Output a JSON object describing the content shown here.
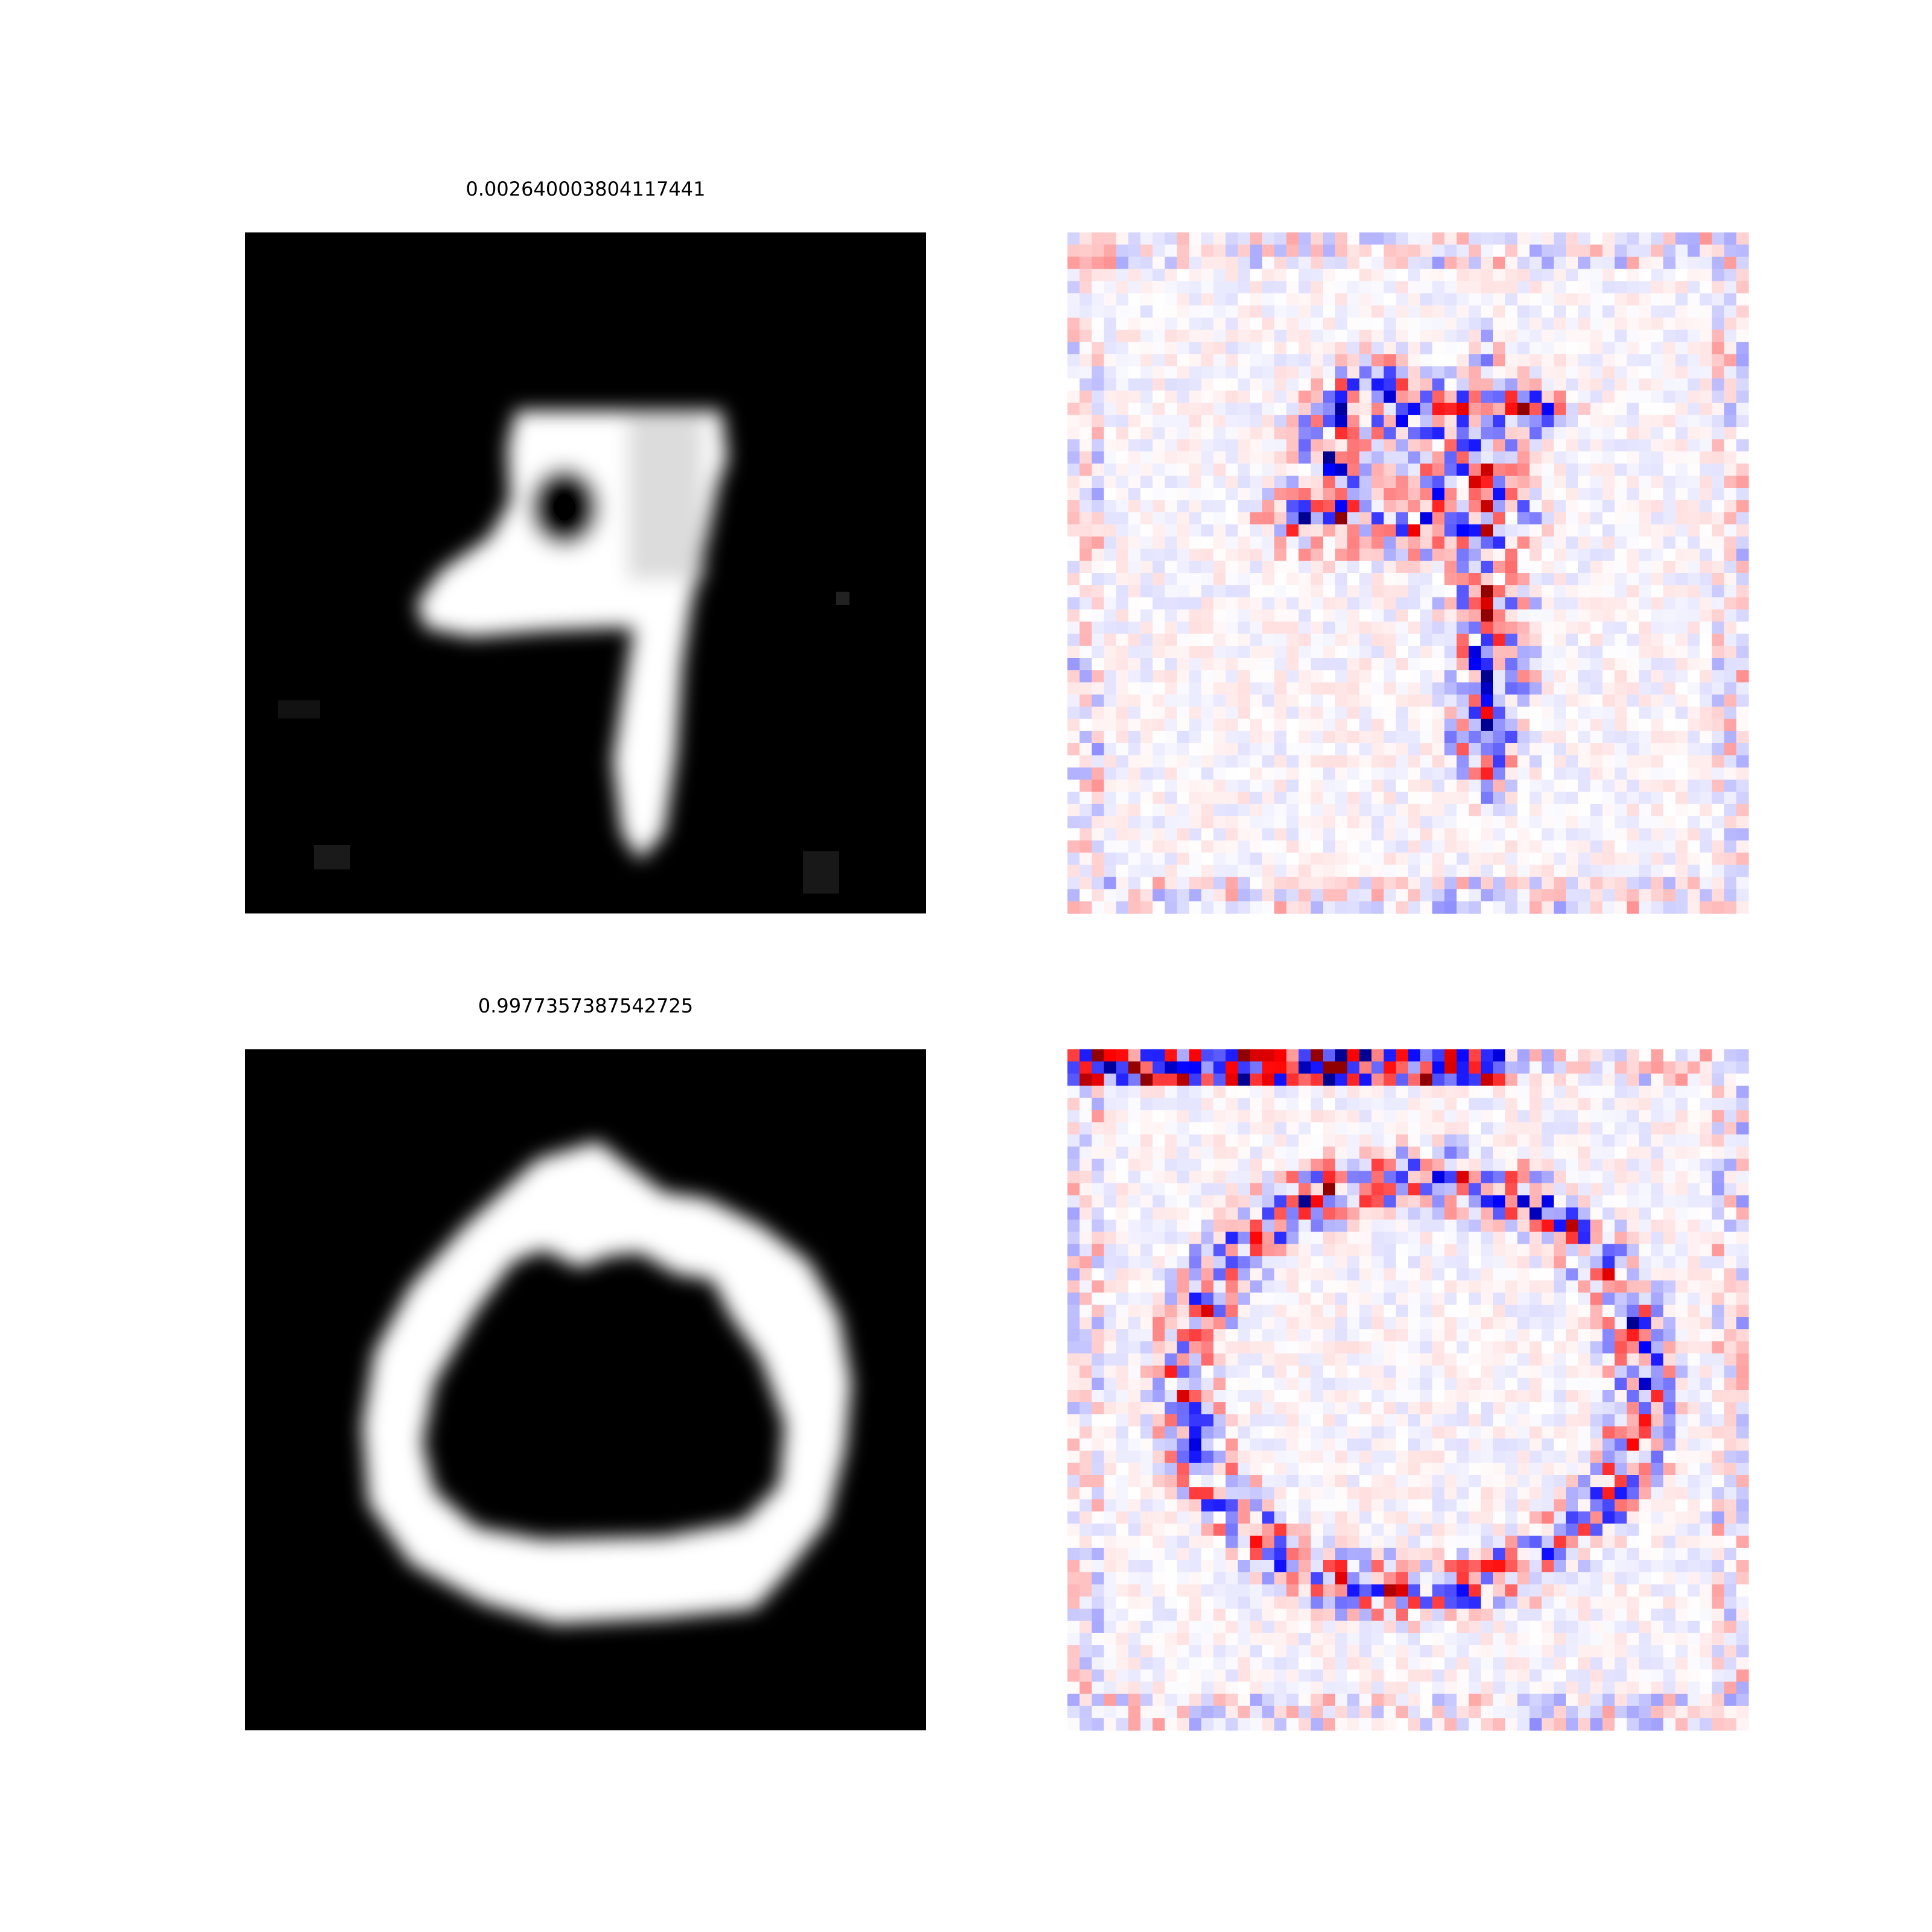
{
  "figure": {
    "background": "#ffffff",
    "layout": "2x2 grid of image panels; left column digit images, right column red-white-blue attribution heatmaps"
  },
  "chart_data": [
    {
      "type": "heatmap",
      "panel": "top-left",
      "title": "0.002640003804117441",
      "colormap": "gray",
      "depicts": "handwritten digit 9 (white on black)",
      "axes": "off"
    },
    {
      "type": "heatmap",
      "panel": "top-right",
      "title": "",
      "colormap": "bwr",
      "depicts": "attribution map for the digit 9",
      "axes": "off"
    },
    {
      "type": "heatmap",
      "panel": "bottom-left",
      "title": "0.9977357387542725",
      "colormap": "gray",
      "depicts": "handwritten digit 0 (white on black)",
      "axes": "off"
    },
    {
      "type": "heatmap",
      "panel": "bottom-right",
      "title": "",
      "colormap": "bwr",
      "depicts": "attribution map for the digit 0",
      "axes": "off"
    }
  ],
  "colors": {
    "positive": "#ff0000",
    "negative": "#0000ff",
    "neutral": "#ffffff",
    "digit_background": "#000000",
    "digit_stroke": "#ffffff"
  }
}
